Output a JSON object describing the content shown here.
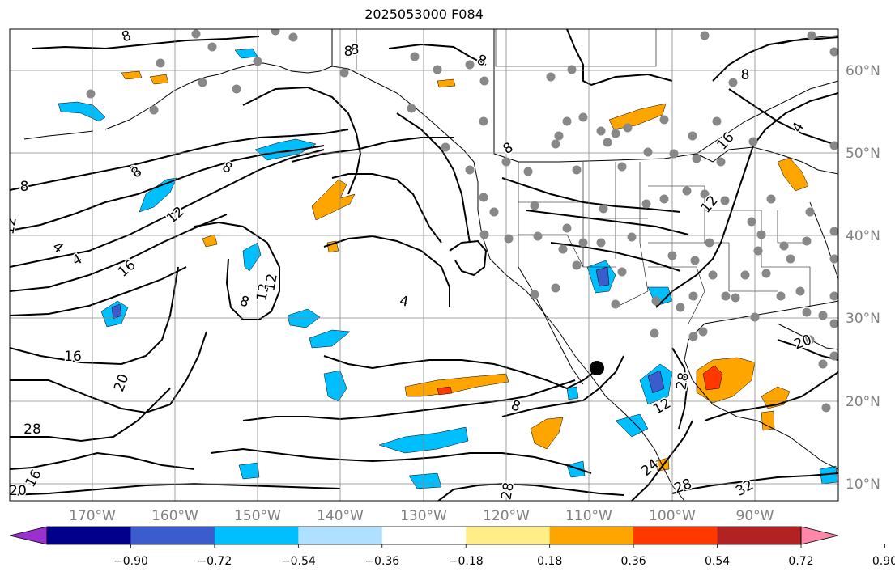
{
  "title": "2025053000 F084",
  "longitude_labels": [
    "170°W",
    "160°W",
    "150°W",
    "140°W",
    "130°W",
    "120°W",
    "110°W",
    "100°W",
    "90°W"
  ],
  "latitude_labels": [
    "60°N",
    "50°N",
    "40°N",
    "30°N",
    "20°N",
    "10°N"
  ],
  "colorbar": {
    "colors": [
      "#9b30d0",
      "#00008b",
      "#3a5ccc",
      "#00bfff",
      "#b0e0ff",
      "#ffffff",
      "#ffee88",
      "#ffa500",
      "#ff3800",
      "#b22222",
      "#ff88aa"
    ],
    "tick_labels": [
      "−0.90",
      "−0.72",
      "−0.54",
      "−0.36",
      "−0.18",
      "0.18",
      "0.36",
      "0.54",
      "0.72",
      "0.90"
    ]
  },
  "contour_labels": [
    "8",
    "8",
    "8",
    "8",
    "8",
    "8",
    "8",
    "8",
    "8",
    "8",
    "4",
    "4",
    "4",
    "4",
    "12",
    "12",
    "12",
    "12",
    "12",
    "16",
    "16",
    "16",
    "16",
    "20",
    "20",
    "20",
    "24",
    "28",
    "28",
    "28",
    "28",
    "32",
    "8",
    "8",
    "12"
  ],
  "colors": {
    "land_line": "#000000",
    "grid": "#888888",
    "station": "#888888",
    "tick_text": "#808080"
  }
}
